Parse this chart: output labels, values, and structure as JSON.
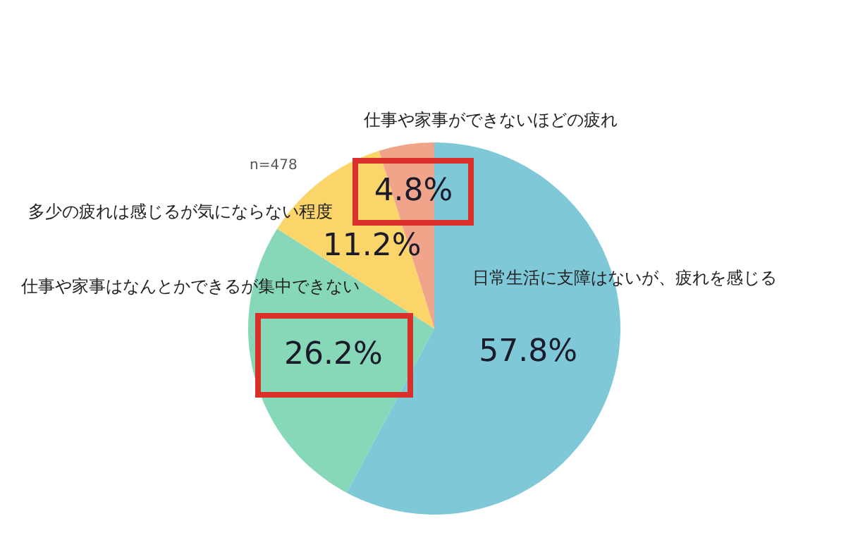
{
  "chart_data": {
    "type": "pie",
    "categories": [
      "日常生活に支障はないが、疲れを感じる",
      "仕事や家事はなんとかできるが集中できない",
      "多少の疲れは感じるが気にならない程度",
      "仕事や家事ができないほどの疲れ"
    ],
    "values": [
      57.8,
      26.2,
      11.2,
      4.8
    ],
    "value_labels": [
      "57.8%",
      "26.2%",
      "11.2%",
      "4.8%"
    ],
    "colors": [
      "#7ec8d8",
      "#86d8b8",
      "#fcd56a",
      "#f0a58a"
    ],
    "annotations": [
      "n=478"
    ],
    "legend": false
  }
}
